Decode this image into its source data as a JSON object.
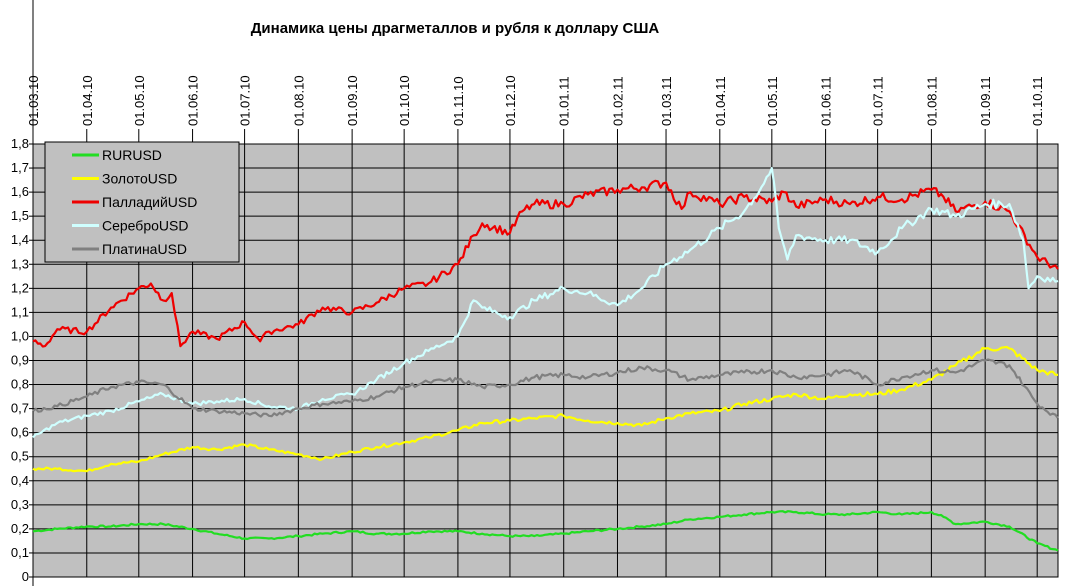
{
  "chart_data": {
    "type": "line",
    "title": "Динамика цены драгметаллов и рубля к доллару США",
    "xlabel": "",
    "ylabel": "",
    "x_ticks": [
      "01.03.10",
      "01.04.10",
      "01.05.10",
      "01.06.10",
      "01.07.10",
      "01.08.10",
      "01.09.10",
      "01.10.10",
      "01.11.10",
      "01.12.10",
      "01.01.11",
      "01.02.11",
      "01.03.11",
      "01.04.11",
      "01.05.11",
      "01.06.11",
      "01.07.11",
      "01.08.11",
      "01.09.11",
      "01.10.11"
    ],
    "x_range": [
      "2010-03-01",
      "2011-10-13"
    ],
    "y_ticks": [
      "0",
      "0,1",
      "0,2",
      "0,3",
      "0,4",
      "0,5",
      "0,6",
      "0,7",
      "0,8",
      "0,9",
      "1,0",
      "1,1",
      "1,2",
      "1,3",
      "1,4",
      "1,5",
      "1,6",
      "1,7",
      "1,8"
    ],
    "ylim": [
      0,
      1.8
    ],
    "grid": true,
    "plot_background": "#c0c0c0",
    "legend_position": "top-left",
    "series": [
      {
        "name": "RURUSD",
        "color": "#22dd22",
        "points": [
          [
            "2010-03-01",
            0.19
          ],
          [
            "2010-03-15",
            0.2
          ],
          [
            "2010-04-01",
            0.21
          ],
          [
            "2010-04-15",
            0.21
          ],
          [
            "2010-05-01",
            0.22
          ],
          [
            "2010-05-15",
            0.22
          ],
          [
            "2010-06-01",
            0.2
          ],
          [
            "2010-06-15",
            0.18
          ],
          [
            "2010-07-01",
            0.16
          ],
          [
            "2010-07-15",
            0.16
          ],
          [
            "2010-08-01",
            0.17
          ],
          [
            "2010-08-15",
            0.18
          ],
          [
            "2010-09-01",
            0.19
          ],
          [
            "2010-09-15",
            0.18
          ],
          [
            "2010-10-01",
            0.18
          ],
          [
            "2010-10-15",
            0.19
          ],
          [
            "2010-11-01",
            0.19
          ],
          [
            "2010-11-15",
            0.18
          ],
          [
            "2010-12-01",
            0.17
          ],
          [
            "2010-12-15",
            0.17
          ],
          [
            "2011-01-01",
            0.18
          ],
          [
            "2011-01-15",
            0.19
          ],
          [
            "2011-02-01",
            0.2
          ],
          [
            "2011-02-15",
            0.21
          ],
          [
            "2011-03-01",
            0.22
          ],
          [
            "2011-03-15",
            0.24
          ],
          [
            "2011-04-01",
            0.25
          ],
          [
            "2011-04-15",
            0.26
          ],
          [
            "2011-05-01",
            0.27
          ],
          [
            "2011-05-15",
            0.27
          ],
          [
            "2011-06-01",
            0.26
          ],
          [
            "2011-06-15",
            0.26
          ],
          [
            "2011-07-01",
            0.27
          ],
          [
            "2011-07-15",
            0.26
          ],
          [
            "2011-08-01",
            0.27
          ],
          [
            "2011-08-08",
            0.25
          ],
          [
            "2011-08-15",
            0.22
          ],
          [
            "2011-09-01",
            0.23
          ],
          [
            "2011-09-15",
            0.21
          ],
          [
            "2011-10-01",
            0.14
          ],
          [
            "2011-10-13",
            0.11
          ]
        ]
      },
      {
        "name": "ЗолотоUSD",
        "color": "#ffff00",
        "points": [
          [
            "2010-03-01",
            0.45
          ],
          [
            "2010-03-15",
            0.45
          ],
          [
            "2010-04-01",
            0.44
          ],
          [
            "2010-04-15",
            0.47
          ],
          [
            "2010-05-01",
            0.48
          ],
          [
            "2010-05-15",
            0.51
          ],
          [
            "2010-06-01",
            0.54
          ],
          [
            "2010-06-15",
            0.53
          ],
          [
            "2010-07-01",
            0.55
          ],
          [
            "2010-07-15",
            0.53
          ],
          [
            "2010-08-01",
            0.51
          ],
          [
            "2010-08-15",
            0.49
          ],
          [
            "2010-09-01",
            0.52
          ],
          [
            "2010-09-15",
            0.54
          ],
          [
            "2010-10-01",
            0.56
          ],
          [
            "2010-10-15",
            0.58
          ],
          [
            "2010-11-01",
            0.61
          ],
          [
            "2010-11-15",
            0.64
          ],
          [
            "2010-12-01",
            0.65
          ],
          [
            "2010-12-15",
            0.66
          ],
          [
            "2011-01-01",
            0.67
          ],
          [
            "2011-01-15",
            0.65
          ],
          [
            "2011-02-01",
            0.64
          ],
          [
            "2011-02-15",
            0.63
          ],
          [
            "2011-03-01",
            0.66
          ],
          [
            "2011-03-15",
            0.68
          ],
          [
            "2011-04-01",
            0.69
          ],
          [
            "2011-04-15",
            0.72
          ],
          [
            "2011-05-01",
            0.74
          ],
          [
            "2011-05-15",
            0.76
          ],
          [
            "2011-06-01",
            0.74
          ],
          [
            "2011-06-15",
            0.76
          ],
          [
            "2011-07-01",
            0.76
          ],
          [
            "2011-07-15",
            0.78
          ],
          [
            "2011-08-01",
            0.82
          ],
          [
            "2011-08-15",
            0.88
          ],
          [
            "2011-09-01",
            0.95
          ],
          [
            "2011-09-15",
            0.95
          ],
          [
            "2011-10-01",
            0.86
          ],
          [
            "2011-10-13",
            0.84
          ]
        ]
      },
      {
        "name": "ПалладийUSD",
        "color": "#ee0000",
        "points": [
          [
            "2010-03-01",
            0.98
          ],
          [
            "2010-03-08",
            0.96
          ],
          [
            "2010-03-15",
            1.03
          ],
          [
            "2010-04-01",
            1.02
          ],
          [
            "2010-04-15",
            1.12
          ],
          [
            "2010-05-01",
            1.2
          ],
          [
            "2010-05-08",
            1.22
          ],
          [
            "2010-05-15",
            1.15
          ],
          [
            "2010-05-20",
            1.18
          ],
          [
            "2010-05-25",
            0.96
          ],
          [
            "2010-06-01",
            1.02
          ],
          [
            "2010-06-15",
            0.99
          ],
          [
            "2010-07-01",
            1.06
          ],
          [
            "2010-07-10",
            0.98
          ],
          [
            "2010-07-15",
            1.02
          ],
          [
            "2010-08-01",
            1.05
          ],
          [
            "2010-08-15",
            1.12
          ],
          [
            "2010-09-01",
            1.1
          ],
          [
            "2010-09-15",
            1.14
          ],
          [
            "2010-10-01",
            1.2
          ],
          [
            "2010-10-15",
            1.22
          ],
          [
            "2010-11-01",
            1.3
          ],
          [
            "2010-11-10",
            1.42
          ],
          [
            "2010-11-15",
            1.47
          ],
          [
            "2010-12-01",
            1.43
          ],
          [
            "2010-12-08",
            1.52
          ],
          [
            "2010-12-15",
            1.55
          ],
          [
            "2011-01-01",
            1.55
          ],
          [
            "2011-01-15",
            1.59
          ],
          [
            "2011-02-01",
            1.61
          ],
          [
            "2011-02-15",
            1.62
          ],
          [
            "2011-03-01",
            1.64
          ],
          [
            "2011-03-10",
            1.53
          ],
          [
            "2011-03-15",
            1.6
          ],
          [
            "2011-04-01",
            1.55
          ],
          [
            "2011-04-15",
            1.58
          ],
          [
            "2011-05-01",
            1.56
          ],
          [
            "2011-05-08",
            1.6
          ],
          [
            "2011-05-15",
            1.54
          ],
          [
            "2011-06-01",
            1.57
          ],
          [
            "2011-06-15",
            1.55
          ],
          [
            "2011-07-01",
            1.58
          ],
          [
            "2011-07-15",
            1.57
          ],
          [
            "2011-08-01",
            1.61
          ],
          [
            "2011-08-08",
            1.58
          ],
          [
            "2011-08-15",
            1.52
          ],
          [
            "2011-09-01",
            1.56
          ],
          [
            "2011-09-15",
            1.52
          ],
          [
            "2011-10-01",
            1.33
          ],
          [
            "2011-10-13",
            1.28
          ]
        ]
      },
      {
        "name": "СереброUSD",
        "color": "#cfffff",
        "points": [
          [
            "2010-03-01",
            0.58
          ],
          [
            "2010-03-15",
            0.64
          ],
          [
            "2010-04-01",
            0.67
          ],
          [
            "2010-04-15",
            0.69
          ],
          [
            "2010-05-01",
            0.73
          ],
          [
            "2010-05-15",
            0.76
          ],
          [
            "2010-06-01",
            0.72
          ],
          [
            "2010-06-15",
            0.73
          ],
          [
            "2010-07-01",
            0.74
          ],
          [
            "2010-07-15",
            0.71
          ],
          [
            "2010-08-01",
            0.7
          ],
          [
            "2010-08-15",
            0.74
          ],
          [
            "2010-09-01",
            0.76
          ],
          [
            "2010-09-15",
            0.82
          ],
          [
            "2010-10-01",
            0.89
          ],
          [
            "2010-10-15",
            0.94
          ],
          [
            "2010-11-01",
            1.0
          ],
          [
            "2010-11-10",
            1.15
          ],
          [
            "2010-11-15",
            1.12
          ],
          [
            "2010-12-01",
            1.08
          ],
          [
            "2010-12-15",
            1.15
          ],
          [
            "2011-01-01",
            1.2
          ],
          [
            "2011-01-15",
            1.18
          ],
          [
            "2011-02-01",
            1.13
          ],
          [
            "2011-02-15",
            1.2
          ],
          [
            "2011-03-01",
            1.3
          ],
          [
            "2011-03-15",
            1.36
          ],
          [
            "2011-04-01",
            1.45
          ],
          [
            "2011-04-15",
            1.52
          ],
          [
            "2011-04-25",
            1.62
          ],
          [
            "2011-05-01",
            1.7
          ],
          [
            "2011-05-05",
            1.45
          ],
          [
            "2011-05-10",
            1.32
          ],
          [
            "2011-05-15",
            1.42
          ],
          [
            "2011-06-01",
            1.4
          ],
          [
            "2011-06-15",
            1.4
          ],
          [
            "2011-07-01",
            1.35
          ],
          [
            "2011-07-15",
            1.45
          ],
          [
            "2011-08-01",
            1.53
          ],
          [
            "2011-08-15",
            1.5
          ],
          [
            "2011-09-01",
            1.55
          ],
          [
            "2011-09-15",
            1.55
          ],
          [
            "2011-09-23",
            1.4
          ],
          [
            "2011-09-26",
            1.2
          ],
          [
            "2011-10-01",
            1.25
          ],
          [
            "2011-10-13",
            1.23
          ]
        ]
      },
      {
        "name": "ПлатинаUSD",
        "color": "#808080",
        "points": [
          [
            "2010-03-01",
            0.69
          ],
          [
            "2010-03-15",
            0.71
          ],
          [
            "2010-04-01",
            0.75
          ],
          [
            "2010-04-15",
            0.79
          ],
          [
            "2010-05-01",
            0.81
          ],
          [
            "2010-05-15",
            0.8
          ],
          [
            "2010-06-01",
            0.7
          ],
          [
            "2010-06-15",
            0.69
          ],
          [
            "2010-07-01",
            0.68
          ],
          [
            "2010-07-15",
            0.67
          ],
          [
            "2010-08-01",
            0.7
          ],
          [
            "2010-08-15",
            0.72
          ],
          [
            "2010-09-01",
            0.73
          ],
          [
            "2010-09-15",
            0.75
          ],
          [
            "2010-10-01",
            0.79
          ],
          [
            "2010-10-15",
            0.81
          ],
          [
            "2010-11-01",
            0.82
          ],
          [
            "2010-11-15",
            0.79
          ],
          [
            "2010-12-01",
            0.8
          ],
          [
            "2010-12-15",
            0.83
          ],
          [
            "2011-01-01",
            0.84
          ],
          [
            "2011-01-15",
            0.83
          ],
          [
            "2011-02-01",
            0.85
          ],
          [
            "2011-02-15",
            0.87
          ],
          [
            "2011-03-01",
            0.86
          ],
          [
            "2011-03-15",
            0.82
          ],
          [
            "2011-04-01",
            0.84
          ],
          [
            "2011-04-15",
            0.85
          ],
          [
            "2011-05-01",
            0.86
          ],
          [
            "2011-05-15",
            0.83
          ],
          [
            "2011-06-01",
            0.84
          ],
          [
            "2011-06-15",
            0.86
          ],
          [
            "2011-07-01",
            0.8
          ],
          [
            "2011-07-15",
            0.83
          ],
          [
            "2011-08-01",
            0.86
          ],
          [
            "2011-08-15",
            0.85
          ],
          [
            "2011-09-01",
            0.9
          ],
          [
            "2011-09-15",
            0.88
          ],
          [
            "2011-10-01",
            0.72
          ],
          [
            "2011-10-13",
            0.66
          ]
        ]
      }
    ]
  }
}
